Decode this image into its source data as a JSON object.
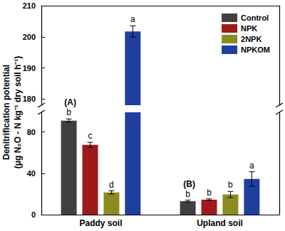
{
  "chart_data": {
    "type": "bar",
    "ylabel": "Denitrification potential\n(μg N₂O - N kg⁻¹ dry soil h⁻¹)",
    "categories": [
      "Paddy soil",
      "Upland soil"
    ],
    "panel_labels": [
      "(A)",
      "(B)"
    ],
    "series": [
      {
        "name": "Control",
        "color": "#404040",
        "values": [
          91,
          13
        ],
        "errors": [
          1.5,
          1
        ],
        "letters": [
          "b",
          "b"
        ]
      },
      {
        "name": "NPK",
        "color": "#9e1a1a",
        "values": [
          67.5,
          14.5
        ],
        "errors": [
          2.5,
          0.8
        ],
        "letters": [
          "c",
          "b"
        ]
      },
      {
        "name": "2NPK",
        "color": "#8c8c1e",
        "values": [
          21.5,
          19.5
        ],
        "errors": [
          1.5,
          3
        ],
        "letters": [
          "d",
          "b"
        ]
      },
      {
        "name": "NPKOM",
        "color": "#1f3f9f",
        "values": [
          201.7,
          34.5
        ],
        "errors": [
          1.8,
          7
        ],
        "letters": [
          "a",
          "a"
        ]
      }
    ],
    "ylim": [
      0,
      210
    ],
    "yticks": [
      0,
      40,
      80,
      180,
      190,
      200,
      210
    ],
    "y_break": [
      99,
      178
    ],
    "legend": "upper right",
    "grid": false
  }
}
